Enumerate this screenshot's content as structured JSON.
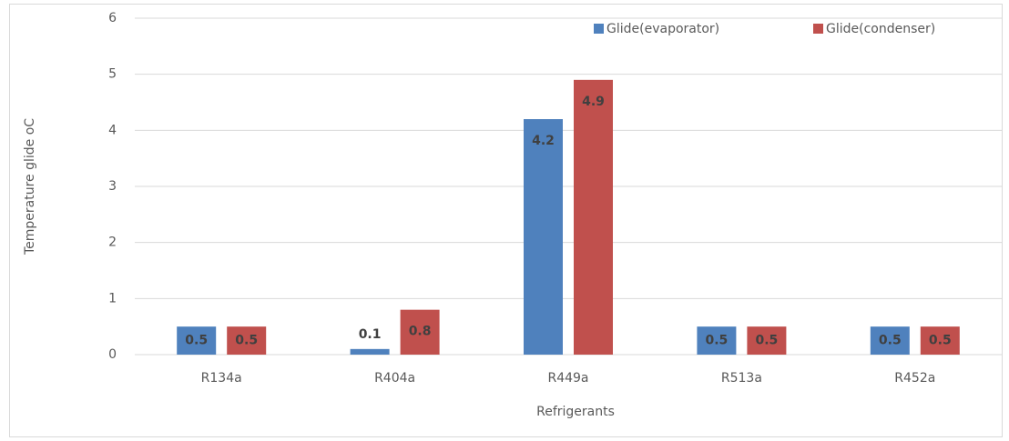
{
  "chart_data": {
    "type": "bar",
    "categories": [
      "R134a",
      "R404a",
      "R449a",
      "R513a",
      "R452a"
    ],
    "series": [
      {
        "name": "Glide(evaporator)",
        "color": "#4f81bd",
        "values": [
          0.5,
          0.1,
          4.2,
          0.5,
          0.5
        ]
      },
      {
        "name": "Glide(condenser)",
        "color": "#c0504d",
        "values": [
          0.5,
          0.8,
          4.9,
          0.5,
          0.5
        ]
      }
    ],
    "x_label": "Refrigerants",
    "y_label": "Temperature glide oC",
    "ylim": [
      0,
      6
    ],
    "yticks": [
      0,
      1,
      2,
      3,
      4,
      5,
      6
    ],
    "grid": true,
    "legend": "top-right"
  }
}
